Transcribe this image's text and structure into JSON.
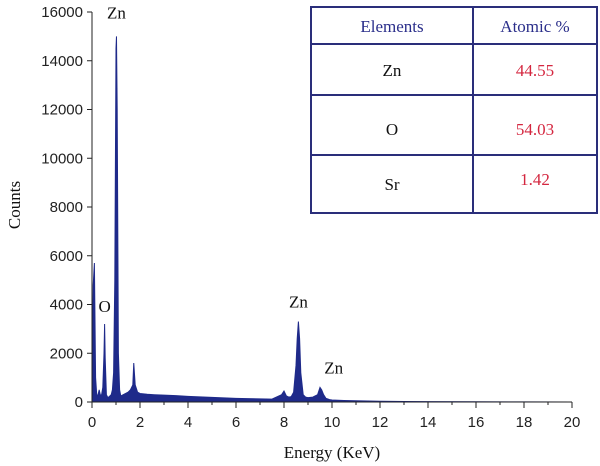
{
  "chart_data": {
    "type": "area",
    "xlabel": "Energy (KeV)",
    "ylabel": "Counts",
    "xlim": [
      0,
      20
    ],
    "ylim": [
      0,
      16000
    ],
    "xticks": [
      0,
      2,
      4,
      6,
      8,
      10,
      12,
      14,
      16,
      18,
      20
    ],
    "yticks": [
      0,
      2000,
      4000,
      6000,
      8000,
      10000,
      12000,
      14000,
      16000
    ],
    "grid": false,
    "series": [
      {
        "color": "#1f2a8a",
        "x": [
          0,
          0.05,
          0.1,
          0.15,
          0.2,
          0.25,
          0.3,
          0.35,
          0.4,
          0.45,
          0.5,
          0.525,
          0.55,
          0.6,
          0.65,
          0.7,
          0.75,
          0.8,
          0.85,
          0.9,
          0.95,
          1.0,
          1.02,
          1.05,
          1.1,
          1.15,
          1.2,
          1.3,
          1.4,
          1.5,
          1.6,
          1.7,
          1.74,
          1.8,
          1.9,
          2.0,
          2.3,
          2.6,
          3.0,
          3.5,
          4.0,
          4.5,
          5.0,
          5.5,
          6.0,
          6.5,
          7.0,
          7.5,
          7.9,
          8.0,
          8.1,
          8.2,
          8.3,
          8.4,
          8.5,
          8.55,
          8.6,
          8.65,
          8.7,
          8.8,
          8.9,
          9.0,
          9.2,
          9.4,
          9.5,
          9.57,
          9.65,
          9.75,
          9.9,
          10.0,
          10.5,
          11.0,
          11.5,
          12.0,
          13.0,
          14.0,
          16.0,
          18.0,
          20.0
        ],
        "y": [
          100,
          4800,
          5700,
          1000,
          250,
          300,
          500,
          280,
          300,
          600,
          2000,
          3200,
          1800,
          300,
          200,
          200,
          250,
          300,
          500,
          1200,
          5000,
          14500,
          15000,
          12000,
          2000,
          500,
          250,
          300,
          350,
          400,
          500,
          700,
          1600,
          700,
          400,
          350,
          320,
          300,
          280,
          260,
          230,
          210,
          190,
          170,
          150,
          140,
          130,
          120,
          300,
          450,
          250,
          200,
          220,
          400,
          1500,
          2600,
          3300,
          2600,
          1200,
          300,
          200,
          180,
          200,
          300,
          600,
          500,
          300,
          150,
          100,
          80,
          60,
          50,
          40,
          30,
          20,
          15,
          10,
          5,
          0
        ]
      }
    ],
    "annotations": [
      {
        "text": "Zn",
        "x": 1.02,
        "y": 15000
      },
      {
        "text": "O",
        "x": 0.525,
        "y": 3200
      },
      {
        "text": "Zn",
        "x": 8.6,
        "y": 3300
      },
      {
        "text": "Zn",
        "x": 9.57,
        "y": 600
      }
    ],
    "table": {
      "headers": [
        "Elements",
        "Atomic %"
      ],
      "rows": [
        [
          "Zn",
          "44.55"
        ],
        [
          "O",
          "54.03"
        ],
        [
          "Sr",
          "1.42"
        ]
      ]
    }
  },
  "colors": {
    "spectrum": "#1f2a8a",
    "table_border": "#2a2e7a",
    "header_text": "#2a2e8a",
    "value_text": "#d4263f"
  }
}
